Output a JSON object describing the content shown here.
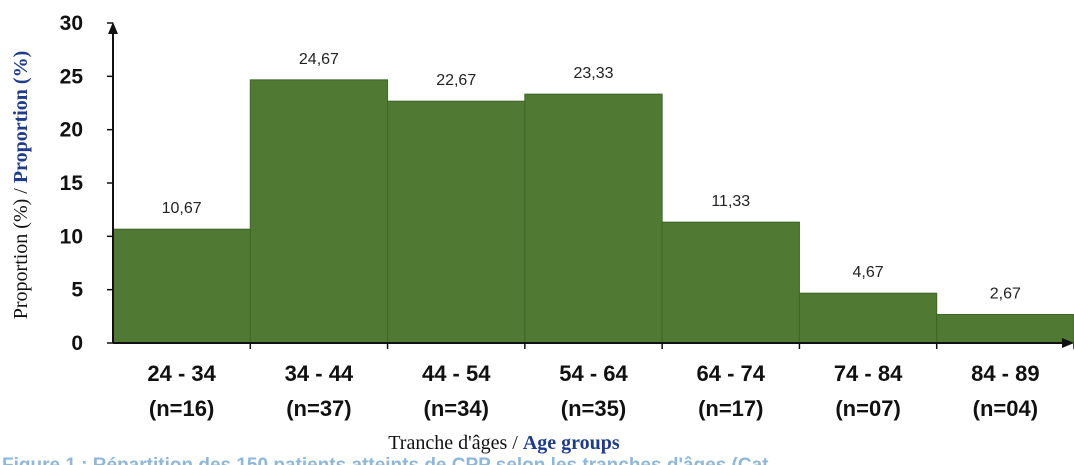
{
  "colors": {
    "bar_fill": "#507a33",
    "bar_stroke": "#3f6627",
    "axis": "#111111",
    "english_title": "#1f3c88",
    "caption": "#8fb7d8"
  },
  "chart_data": {
    "type": "bar",
    "categories": [
      "24 - 34",
      "34 - 44",
      "44 - 54",
      "54 - 64",
      "64 - 74",
      "74 - 84",
      "84 - 89"
    ],
    "counts": [
      "(n=16)",
      "(n=37)",
      "(n=34)",
      "(n=35)",
      "(n=17)",
      "(n=07)",
      "(n=04)"
    ],
    "values": [
      10.67,
      24.67,
      22.67,
      23.33,
      11.33,
      4.67,
      2.67
    ],
    "value_labels": [
      "10,67",
      "24,67",
      "22,67",
      "23,33",
      "11,33",
      "4,67",
      "2,67"
    ],
    "ylim": [
      0,
      30
    ],
    "yticks": [
      0,
      5,
      10,
      15,
      20,
      25,
      30
    ],
    "ylabel": {
      "french": "Proportion (%) / ",
      "english": "Proportion (%)"
    },
    "xlabel": {
      "french": "Tranche d'âges / ",
      "english": "Age groups"
    },
    "grid": false,
    "legend": "none"
  },
  "caption": {
    "text": "Figure 1 : Répartition des 150 patients atteints de CPP selon les tranches d'âges (Cat"
  }
}
